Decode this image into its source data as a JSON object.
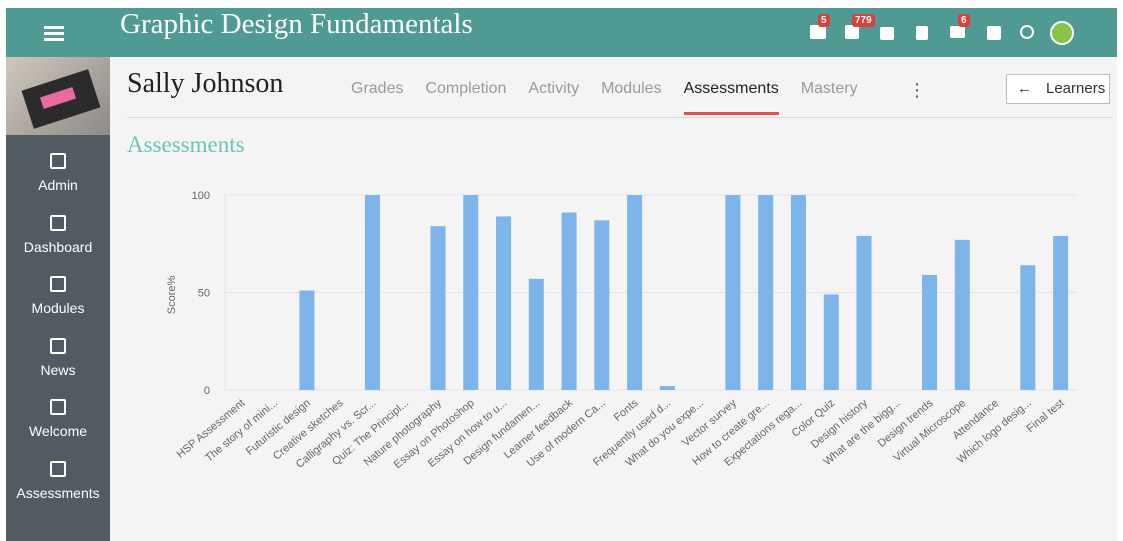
{
  "header": {
    "title": "Graphic Design Fundamentals",
    "badges": [
      5,
      779,
      6
    ]
  },
  "sidebar": {
    "items": [
      "Admin",
      "Dashboard",
      "Modules",
      "News",
      "Welcome",
      "Assessments"
    ]
  },
  "learner": {
    "name": "Sally Johnson",
    "tabs": [
      "Grades",
      "Completion",
      "Activity",
      "Modules",
      "Assessments",
      "Mastery"
    ],
    "back_button": "Learners"
  },
  "section_title": "Assessments",
  "chart_data": {
    "type": "bar",
    "y_label": "Score%",
    "categories": [
      "HSP Assessment",
      "The story of mini...",
      "Futuristic design",
      "Creative sketches",
      "Calligraphy vs. Scr...",
      "Quiz: The Principl...",
      "Nature photography",
      "Essay on Photoshop",
      "Essay on how to u...",
      "Design fundamen...",
      "Learner feedback",
      "Use of modern Ca...",
      "Fonts",
      "Frequently used d...",
      "What do you expe...",
      "Vector survey",
      "How to create gre...",
      "Expectations rega...",
      "Color Quiz",
      "Design history",
      "What are the bigg...",
      "Design trends",
      "Virtual Microscope",
      "Attendance",
      "Which logo desig...",
      "Final test"
    ],
    "values": [
      0,
      0,
      51,
      0,
      100,
      0,
      84,
      100,
      89,
      57,
      91,
      87,
      100,
      2,
      0,
      100,
      100,
      100,
      49,
      79,
      0,
      59,
      77,
      0,
      64,
      79
    ],
    "color": "#7db4e9",
    "ylim": [
      0,
      100
    ],
    "yticks": [
      0,
      50,
      100
    ],
    "grid": true
  }
}
